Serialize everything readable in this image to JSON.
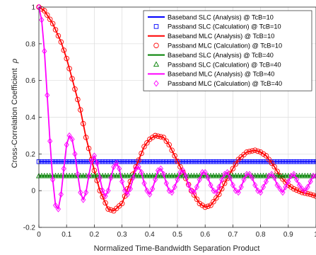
{
  "chart_data": {
    "type": "line",
    "xlabel": "Normalized Time-Bandwidth Separation Product",
    "ylabel": "Cross-Correlation Coefficient",
    "ylabel_symbol": "ρ",
    "xlim": [
      0,
      1
    ],
    "ylim": [
      -0.2,
      1
    ],
    "xticks": [
      "0",
      "0.1",
      "0.2",
      "0.3",
      "0.4",
      "0.5",
      "0.6",
      "0.7",
      "0.8",
      "0.9",
      "1"
    ],
    "yticks": [
      "-0.2",
      "0",
      "0.2",
      "0.4",
      "0.6",
      "0.8",
      "1"
    ],
    "grid": true,
    "legend_position": "top-right",
    "series": [
      {
        "name": "Baseband SLC (Analysis) @ TcB=10",
        "color": "#0000ff",
        "style": "line",
        "x": [
          0,
          1
        ],
        "y": [
          0.158,
          0.158
        ]
      },
      {
        "name": "Passband SLC (Calculation) @ TcB=10",
        "color": "#0000ff",
        "style": "square",
        "marker_step": 0.01,
        "x": [
          0,
          1
        ],
        "y": [
          0.158,
          0.158
        ]
      },
      {
        "name": "Baseband MLC (Analysis) @ TcB=10",
        "color": "#ff0000",
        "style": "line",
        "x": [
          0,
          0.02,
          0.05,
          0.08,
          0.1,
          0.12,
          0.15,
          0.17,
          0.2,
          0.22,
          0.25,
          0.27,
          0.3,
          0.32,
          0.35,
          0.38,
          0.4,
          0.42,
          0.45,
          0.47,
          0.5,
          0.52,
          0.55,
          0.58,
          0.6,
          0.62,
          0.65,
          0.67,
          0.7,
          0.72,
          0.75,
          0.78,
          0.8,
          0.82,
          0.85,
          0.87,
          0.9,
          0.92,
          0.95,
          0.98,
          1.0
        ],
        "y": [
          1.0,
          0.98,
          0.91,
          0.81,
          0.72,
          0.61,
          0.44,
          0.29,
          0.11,
          0.0,
          -0.1,
          -0.11,
          -0.07,
          0.01,
          0.13,
          0.24,
          0.28,
          0.3,
          0.29,
          0.25,
          0.16,
          0.1,
          0.0,
          -0.07,
          -0.09,
          -0.08,
          -0.02,
          0.04,
          0.12,
          0.17,
          0.21,
          0.22,
          0.21,
          0.19,
          0.13,
          0.08,
          0.03,
          0.01,
          -0.01,
          -0.02,
          -0.03
        ]
      },
      {
        "name": "Passband MLC (Calculation) @ TcB=10",
        "color": "#ff0000",
        "style": "circle",
        "marker_step": 0.01,
        "x": [
          0,
          0.02,
          0.05,
          0.08,
          0.1,
          0.12,
          0.15,
          0.17,
          0.2,
          0.22,
          0.25,
          0.27,
          0.3,
          0.32,
          0.35,
          0.38,
          0.4,
          0.42,
          0.45,
          0.47,
          0.5,
          0.52,
          0.55,
          0.58,
          0.6,
          0.62,
          0.65,
          0.67,
          0.7,
          0.72,
          0.75,
          0.78,
          0.8,
          0.82,
          0.85,
          0.87,
          0.9,
          0.92,
          0.95,
          0.98,
          1.0
        ],
        "y": [
          1.0,
          0.98,
          0.91,
          0.81,
          0.72,
          0.61,
          0.44,
          0.29,
          0.11,
          0.0,
          -0.1,
          -0.11,
          -0.07,
          0.01,
          0.13,
          0.24,
          0.28,
          0.3,
          0.29,
          0.25,
          0.16,
          0.1,
          0.0,
          -0.07,
          -0.09,
          -0.08,
          -0.02,
          0.04,
          0.12,
          0.17,
          0.21,
          0.22,
          0.21,
          0.19,
          0.13,
          0.08,
          0.03,
          0.01,
          -0.01,
          -0.02,
          -0.03
        ]
      },
      {
        "name": "Baseband SLC (Analysis) @ TcB=40",
        "color": "#008000",
        "style": "line",
        "x": [
          0,
          1
        ],
        "y": [
          0.08,
          0.08
        ]
      },
      {
        "name": "Passband SLC (Calculation) @ TcB=40",
        "color": "#008000",
        "style": "triangle",
        "marker_step": 0.01,
        "x": [
          0,
          1
        ],
        "y": [
          0.08,
          0.08
        ]
      },
      {
        "name": "Baseband MLC (Analysis) @ TcB=40",
        "color": "#ff00ff",
        "style": "line",
        "x": [
          0,
          0.01,
          0.02,
          0.03,
          0.04,
          0.05,
          0.06,
          0.07,
          0.08,
          0.09,
          0.1,
          0.11,
          0.12,
          0.13,
          0.14,
          0.15,
          0.16,
          0.17,
          0.18,
          0.19,
          0.2,
          0.21,
          0.22,
          0.23,
          0.24,
          0.25,
          0.26,
          0.27,
          0.28,
          0.29,
          0.3,
          0.31,
          0.32,
          0.33,
          0.34,
          0.35,
          0.36,
          0.37,
          0.38,
          0.39,
          0.4,
          0.41,
          0.42,
          0.43,
          0.44,
          0.45,
          0.46,
          0.47,
          0.48,
          0.49,
          0.5,
          0.51,
          0.52,
          0.53,
          0.54,
          0.55,
          0.56,
          0.57,
          0.58,
          0.59,
          0.6,
          0.61,
          0.62,
          0.63,
          0.64,
          0.65,
          0.66,
          0.67,
          0.68,
          0.69,
          0.7,
          0.71,
          0.72,
          0.73,
          0.74,
          0.75,
          0.76,
          0.77,
          0.78,
          0.79,
          0.8,
          0.81,
          0.82,
          0.83,
          0.84,
          0.85,
          0.86,
          0.87,
          0.88,
          0.89,
          0.9,
          0.91,
          0.92,
          0.93,
          0.94,
          0.95,
          0.96,
          0.97,
          0.98,
          0.99,
          1.0
        ],
        "y": [
          1.0,
          0.93,
          0.76,
          0.52,
          0.27,
          0.06,
          -0.08,
          -0.1,
          -0.02,
          0.12,
          0.25,
          0.3,
          0.28,
          0.2,
          0.09,
          -0.01,
          -0.05,
          -0.01,
          0.08,
          0.16,
          0.19,
          0.15,
          0.07,
          0.0,
          -0.03,
          0.0,
          0.07,
          0.13,
          0.15,
          0.12,
          0.05,
          0.0,
          -0.02,
          0.01,
          0.07,
          0.12,
          0.13,
          0.1,
          0.04,
          0.0,
          -0.02,
          0.01,
          0.06,
          0.11,
          0.12,
          0.09,
          0.04,
          0.0,
          -0.01,
          0.02,
          0.06,
          0.1,
          0.11,
          0.08,
          0.03,
          0.0,
          -0.01,
          0.02,
          0.06,
          0.1,
          0.1,
          0.07,
          0.03,
          0.0,
          -0.01,
          0.02,
          0.06,
          0.09,
          0.1,
          0.07,
          0.03,
          0.0,
          -0.01,
          0.02,
          0.06,
          0.09,
          0.09,
          0.07,
          0.03,
          0.0,
          -0.01,
          0.02,
          0.05,
          0.08,
          0.09,
          0.07,
          0.03,
          0.01,
          -0.01,
          0.02,
          0.05,
          0.08,
          0.09,
          0.06,
          0.03,
          0.01,
          0.0,
          0.02,
          0.05,
          0.08,
          0.08
        ]
      },
      {
        "name": "Passband MLC (Calculation) @ TcB=40",
        "color": "#ff00ff",
        "style": "diamond",
        "marker_step": 0.01,
        "x": [
          0,
          0.01,
          0.02,
          0.03,
          0.04,
          0.05,
          0.06,
          0.07,
          0.08,
          0.09,
          0.1,
          0.11,
          0.12,
          0.13,
          0.14,
          0.15,
          0.16,
          0.17,
          0.18,
          0.19,
          0.2,
          0.21,
          0.22,
          0.23,
          0.24,
          0.25,
          0.26,
          0.27,
          0.28,
          0.29,
          0.3,
          0.31,
          0.32,
          0.33,
          0.34,
          0.35,
          0.36,
          0.37,
          0.38,
          0.39,
          0.4,
          0.41,
          0.42,
          0.43,
          0.44,
          0.45,
          0.46,
          0.47,
          0.48,
          0.49,
          0.5,
          0.51,
          0.52,
          0.53,
          0.54,
          0.55,
          0.56,
          0.57,
          0.58,
          0.59,
          0.6,
          0.61,
          0.62,
          0.63,
          0.64,
          0.65,
          0.66,
          0.67,
          0.68,
          0.69,
          0.7,
          0.71,
          0.72,
          0.73,
          0.74,
          0.75,
          0.76,
          0.77,
          0.78,
          0.79,
          0.8,
          0.81,
          0.82,
          0.83,
          0.84,
          0.85,
          0.86,
          0.87,
          0.88,
          0.89,
          0.9,
          0.91,
          0.92,
          0.93,
          0.94,
          0.95,
          0.96,
          0.97,
          0.98,
          0.99,
          1.0
        ],
        "y": [
          1.0,
          0.93,
          0.76,
          0.52,
          0.27,
          0.06,
          -0.08,
          -0.1,
          -0.02,
          0.12,
          0.25,
          0.3,
          0.28,
          0.2,
          0.09,
          -0.01,
          -0.05,
          -0.01,
          0.08,
          0.16,
          0.19,
          0.15,
          0.07,
          0.0,
          -0.03,
          0.0,
          0.07,
          0.13,
          0.15,
          0.12,
          0.05,
          0.0,
          -0.02,
          0.01,
          0.07,
          0.12,
          0.13,
          0.1,
          0.04,
          0.0,
          -0.02,
          0.01,
          0.06,
          0.11,
          0.12,
          0.09,
          0.04,
          0.0,
          -0.01,
          0.02,
          0.06,
          0.1,
          0.11,
          0.08,
          0.03,
          0.0,
          -0.01,
          0.02,
          0.06,
          0.1,
          0.1,
          0.07,
          0.03,
          0.0,
          -0.01,
          0.02,
          0.06,
          0.09,
          0.1,
          0.07,
          0.03,
          0.0,
          -0.01,
          0.02,
          0.06,
          0.09,
          0.09,
          0.07,
          0.03,
          0.0,
          -0.01,
          0.02,
          0.05,
          0.08,
          0.09,
          0.07,
          0.03,
          0.01,
          -0.01,
          0.02,
          0.05,
          0.08,
          0.09,
          0.06,
          0.03,
          0.01,
          0.0,
          0.02,
          0.05,
          0.08,
          0.08
        ]
      }
    ]
  }
}
